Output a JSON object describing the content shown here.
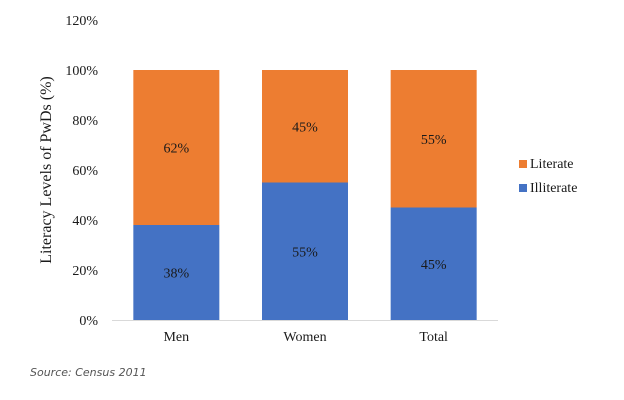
{
  "chart_data": {
    "type": "bar",
    "stacked": true,
    "categories": [
      "Men",
      "Women",
      "Total"
    ],
    "series": [
      {
        "name": "Illiterate",
        "values": [
          38,
          55,
          45
        ],
        "labels": [
          "38%",
          "55%",
          "45%"
        ],
        "color": "#4472C4"
      },
      {
        "name": "Literate",
        "values": [
          62,
          45,
          55
        ],
        "labels": [
          "62%",
          "45%",
          "55%"
        ],
        "color": "#ED7D31"
      }
    ],
    "ylabel": "Literacy  Levels of PwDs (%)",
    "ylim": [
      0,
      120
    ],
    "yticks": [
      0,
      20,
      40,
      60,
      80,
      100,
      120
    ],
    "ytick_labels": [
      "0%",
      "20%",
      "40%",
      "60%",
      "80%",
      "100%",
      "120%"
    ],
    "legend": {
      "position": "right",
      "entries": [
        "Literate",
        "Illiterate"
      ]
    },
    "grid": false
  },
  "source": "Source: Census 2011",
  "axis_line_color": "#d9d9d9"
}
